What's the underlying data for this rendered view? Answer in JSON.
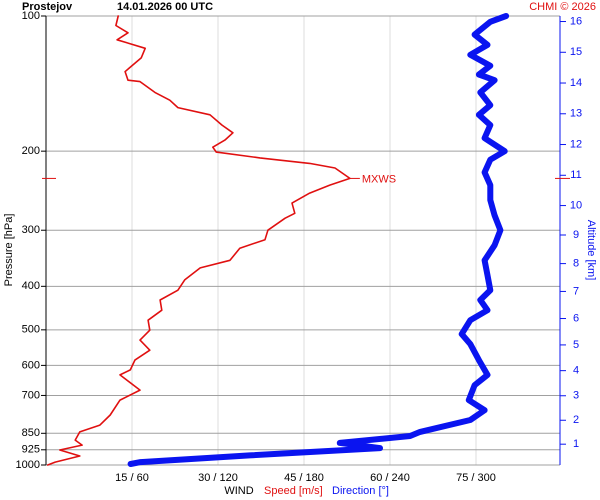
{
  "chart_data": {
    "type": "line",
    "title": "Prostejov",
    "subtitle": "14.01.2026 00 UTC",
    "credit": "CHMI © 2026",
    "ylabel": "Pressure [hPa]",
    "y2label": "Altitude [km]",
    "xlabel": "WIND",
    "ylim": [
      1000,
      100
    ],
    "ylog": true,
    "yticks": [
      100,
      200,
      300,
      400,
      500,
      600,
      700,
      850,
      925,
      1000
    ],
    "y2ticks": [
      1,
      2,
      3,
      4,
      5,
      6,
      7,
      8,
      9,
      10,
      11,
      12,
      13,
      14,
      15,
      16
    ],
    "xlim": [
      0,
      90
    ],
    "x2lim": [
      0,
      360
    ],
    "xticks": [
      {
        "value": 15,
        "label": "15 / 60"
      },
      {
        "value": 30,
        "label": "30 / 120"
      },
      {
        "value": 45,
        "label": "45 / 180"
      },
      {
        "value": 60,
        "label": "60 / 240"
      },
      {
        "value": 75,
        "label": "75 / 300"
      }
    ],
    "grid": true,
    "mxws": {
      "label": "MXWS",
      "pressure": 230
    },
    "series": [
      {
        "name": "Speed [m/s]",
        "color": "#e01010",
        "pressure": [
          100,
          105,
          109,
          113,
          118,
          124,
          133,
          139,
          140,
          148,
          154,
          160,
          166,
          175,
          182,
          189,
          196,
          201,
          207,
          213,
          218,
          230,
          238,
          248,
          261,
          275,
          282,
          300,
          315,
          329,
          350,
          364,
          387,
          408,
          429,
          452,
          476,
          501,
          527,
          555,
          584,
          614,
          630,
          681,
          717,
          774,
          815,
          844,
          880,
          903,
          926,
          955,
          985,
          1000
        ],
        "values": [
          12.6,
          12.2,
          14.3,
          12.4,
          17.3,
          16.6,
          13.8,
          14.3,
          16.4,
          19,
          21.6,
          23,
          28.6,
          30.7,
          32.6,
          31.2,
          29.1,
          29.7,
          37.3,
          46,
          50.4,
          53,
          49.5,
          46,
          42.9,
          43.4,
          41.7,
          38.7,
          38.2,
          33.8,
          32.1,
          26.9,
          24.2,
          23,
          19.9,
          20.2,
          17.8,
          18.1,
          16.4,
          18.1,
          15.5,
          14.7,
          12.9,
          16.4,
          12.9,
          11.2,
          9.4,
          5.9,
          5.1,
          6.3,
          2.4,
          5.9,
          1.6,
          0.3
        ]
      },
      {
        "name": "Direction [°]",
        "color": "#0a14f0",
        "axis": "x2",
        "pressure": [
          100,
          103,
          110,
          116,
          122,
          129,
          135,
          139,
          148,
          158,
          166,
          175,
          187,
          200,
          209,
          223,
          238,
          257,
          278,
          300,
          324,
          350,
          378,
          408,
          429,
          452,
          476,
          511,
          538,
          584,
          630,
          664,
          717,
          755,
          794,
          844,
          862,
          893,
          917,
          952,
          985,
          995
        ],
        "values": [
          321,
          310,
          299,
          308,
          296,
          310,
          302,
          313,
          303,
          310,
          302,
          310,
          306,
          320,
          310,
          306,
          310,
          310,
          313,
          317,
          313,
          306,
          308,
          310,
          303,
          308,
          296,
          290,
          296,
          302,
          308,
          299,
          295,
          306,
          296,
          261,
          254,
          205,
          233,
          142,
          66,
          59
        ]
      }
    ]
  }
}
